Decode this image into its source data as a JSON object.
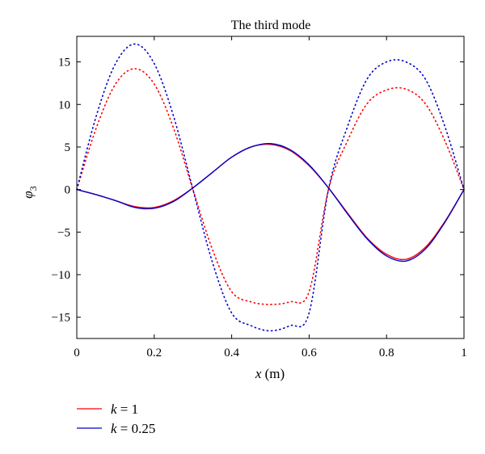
{
  "chart_data": {
    "type": "line",
    "title": "The third mode",
    "xlabel": {
      "var": "x",
      "unit": "(m)"
    },
    "ylabel": {
      "var": "φ",
      "sub": "3"
    },
    "xlim": [
      0,
      1
    ],
    "ylim": [
      -17.5,
      18
    ],
    "xticks": [
      0,
      0.2,
      0.4,
      0.6,
      0.8,
      1
    ],
    "xtick_labels": [
      "0",
      "0.2",
      "0.4",
      "0.6",
      "0.8",
      "1"
    ],
    "yticks": [
      15,
      10,
      5,
      0,
      -5,
      -10,
      -15
    ],
    "ytick_labels": [
      "15",
      "10",
      "5",
      "0",
      "−5",
      "−10",
      "−15"
    ],
    "grid": false,
    "legend_position": "below-left",
    "series": [
      {
        "name": "k = 1",
        "legend_var": "k",
        "legend_rest": " = 1",
        "color": "#ff0000",
        "style": "solid",
        "x": [
          0,
          0.05,
          0.1,
          0.15,
          0.2,
          0.25,
          0.3,
          0.35,
          0.4,
          0.45,
          0.5,
          0.55,
          0.6,
          0.65,
          0.7,
          0.75,
          0.8,
          0.85,
          0.9,
          0.95,
          1
        ],
        "y": [
          0,
          -0.6,
          -1.3,
          -2.0,
          -2.1,
          -1.3,
          0.2,
          2.0,
          3.8,
          5.0,
          5.3,
          4.6,
          2.8,
          0.2,
          -2.8,
          -5.7,
          -7.6,
          -8.2,
          -6.8,
          -3.8,
          0
        ]
      },
      {
        "name": "k = 0.25",
        "legend_var": "k",
        "legend_rest": " = 0.25",
        "color": "#0000cc",
        "style": "solid",
        "x": [
          0,
          0.05,
          0.1,
          0.15,
          0.2,
          0.25,
          0.3,
          0.35,
          0.4,
          0.45,
          0.5,
          0.55,
          0.6,
          0.65,
          0.7,
          0.75,
          0.8,
          0.85,
          0.9,
          0.95,
          1
        ],
        "y": [
          0,
          -0.6,
          -1.3,
          -2.1,
          -2.2,
          -1.4,
          0.2,
          2.0,
          3.8,
          5.0,
          5.4,
          4.7,
          2.9,
          0.2,
          -2.9,
          -5.8,
          -7.8,
          -8.4,
          -7.0,
          -3.9,
          0
        ]
      },
      {
        "name": "k = 1 (dotted)",
        "color": "#ff0000",
        "style": "dotted",
        "x": [
          0,
          0.05,
          0.1,
          0.15,
          0.2,
          0.25,
          0.3,
          0.35,
          0.4,
          0.45,
          0.5,
          0.55,
          0.6,
          0.65,
          0.7,
          0.75,
          0.8,
          0.85,
          0.9,
          0.95,
          1
        ],
        "y": [
          0,
          7.2,
          12.4,
          14.2,
          12.4,
          7.2,
          0,
          -7.0,
          -12.0,
          -13.2,
          -13.5,
          -13.2,
          -12.0,
          0,
          5.8,
          10.1,
          11.7,
          11.8,
          10.1,
          5.8,
          0
        ]
      },
      {
        "name": "k = 0.25 (dotted)",
        "color": "#0000cc",
        "style": "dotted",
        "x": [
          0,
          0.05,
          0.1,
          0.15,
          0.2,
          0.25,
          0.3,
          0.35,
          0.4,
          0.45,
          0.5,
          0.55,
          0.6,
          0.65,
          0.7,
          0.75,
          0.8,
          0.85,
          0.9,
          0.95,
          1
        ],
        "y": [
          0,
          8.6,
          14.8,
          17.1,
          14.8,
          8.6,
          0,
          -8.5,
          -14.5,
          -16.0,
          -16.6,
          -16.0,
          -14.5,
          0,
          7.5,
          13.0,
          15.0,
          15.0,
          13.0,
          7.5,
          0
        ]
      }
    ]
  }
}
